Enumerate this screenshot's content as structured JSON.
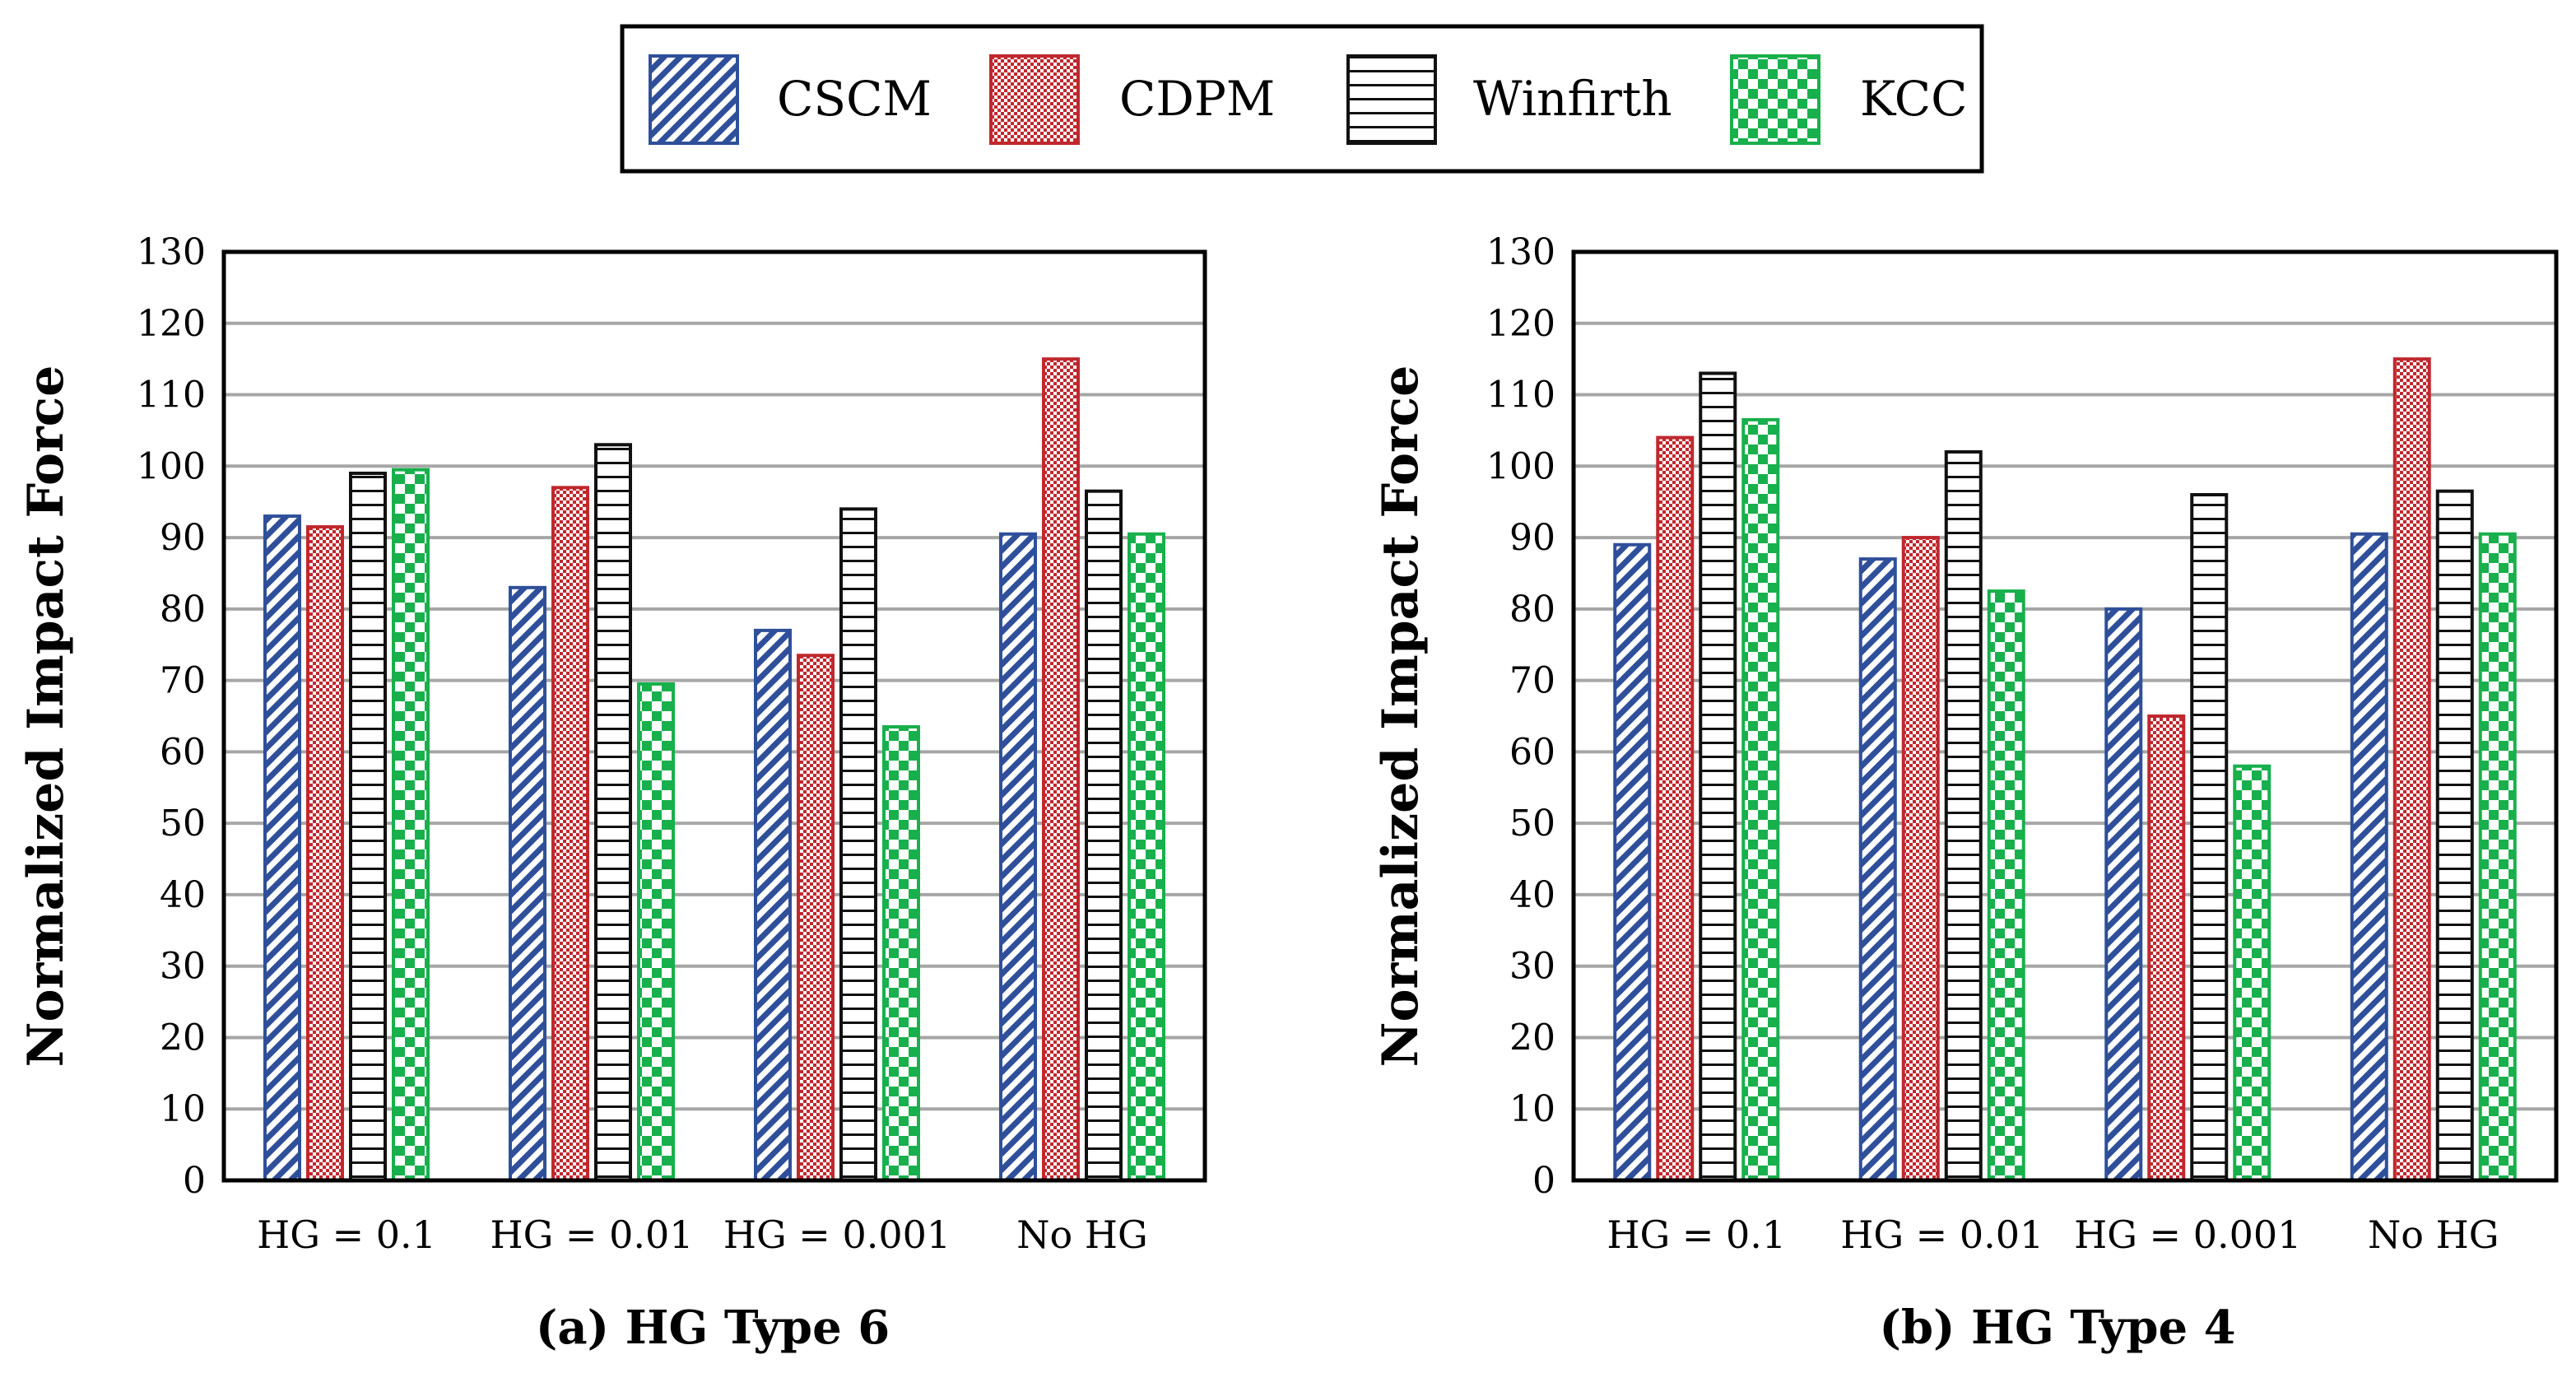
{
  "colors": {
    "cscm": "#2f4f9a",
    "cdpm": "#c0282e",
    "winfirth": "#111111",
    "kcc": "#18b04c",
    "grid": "#a6a6a6"
  },
  "legend": [
    "CSCM",
    "CDPM",
    "Winfirth",
    "KCC"
  ],
  "chart_data": [
    {
      "type": "bar",
      "caption": "(a) HG Type 6",
      "ylabel": "Normalized Impact Force",
      "categories": [
        "HG = 0.1",
        "HG = 0.01",
        "HG = 0.001",
        "No HG"
      ],
      "ylim": [
        0,
        130
      ],
      "yticks": [
        "0",
        "10",
        "20",
        "30",
        "40",
        "50",
        "60",
        "70",
        "80",
        "90",
        "100",
        "110",
        "120",
        "130"
      ],
      "grid": true,
      "series": [
        {
          "name": "CSCM",
          "values": [
            93,
            83,
            77,
            90.5
          ]
        },
        {
          "name": "CDPM",
          "values": [
            91.5,
            97,
            73.5,
            115
          ]
        },
        {
          "name": "Winfirth",
          "values": [
            99,
            103,
            94,
            96.5
          ]
        },
        {
          "name": "KCC",
          "values": [
            99.5,
            69.5,
            63.5,
            90.5
          ]
        }
      ]
    },
    {
      "type": "bar",
      "caption": "(b) HG Type 4",
      "ylabel": "Normalized Impact Force",
      "categories": [
        "HG = 0.1",
        "HG = 0.01",
        "HG = 0.001",
        "No HG"
      ],
      "ylim": [
        0,
        130
      ],
      "yticks": [
        "0",
        "10",
        "20",
        "30",
        "40",
        "50",
        "60",
        "70",
        "80",
        "90",
        "100",
        "110",
        "120",
        "130"
      ],
      "grid": true,
      "series": [
        {
          "name": "CSCM",
          "values": [
            89,
            87,
            80,
            90.5
          ]
        },
        {
          "name": "CDPM",
          "values": [
            104,
            90,
            65,
            115
          ]
        },
        {
          "name": "Winfirth",
          "values": [
            113,
            102,
            96,
            96.5
          ]
        },
        {
          "name": "KCC",
          "values": [
            106.5,
            82.5,
            58,
            90.5
          ]
        }
      ]
    }
  ]
}
